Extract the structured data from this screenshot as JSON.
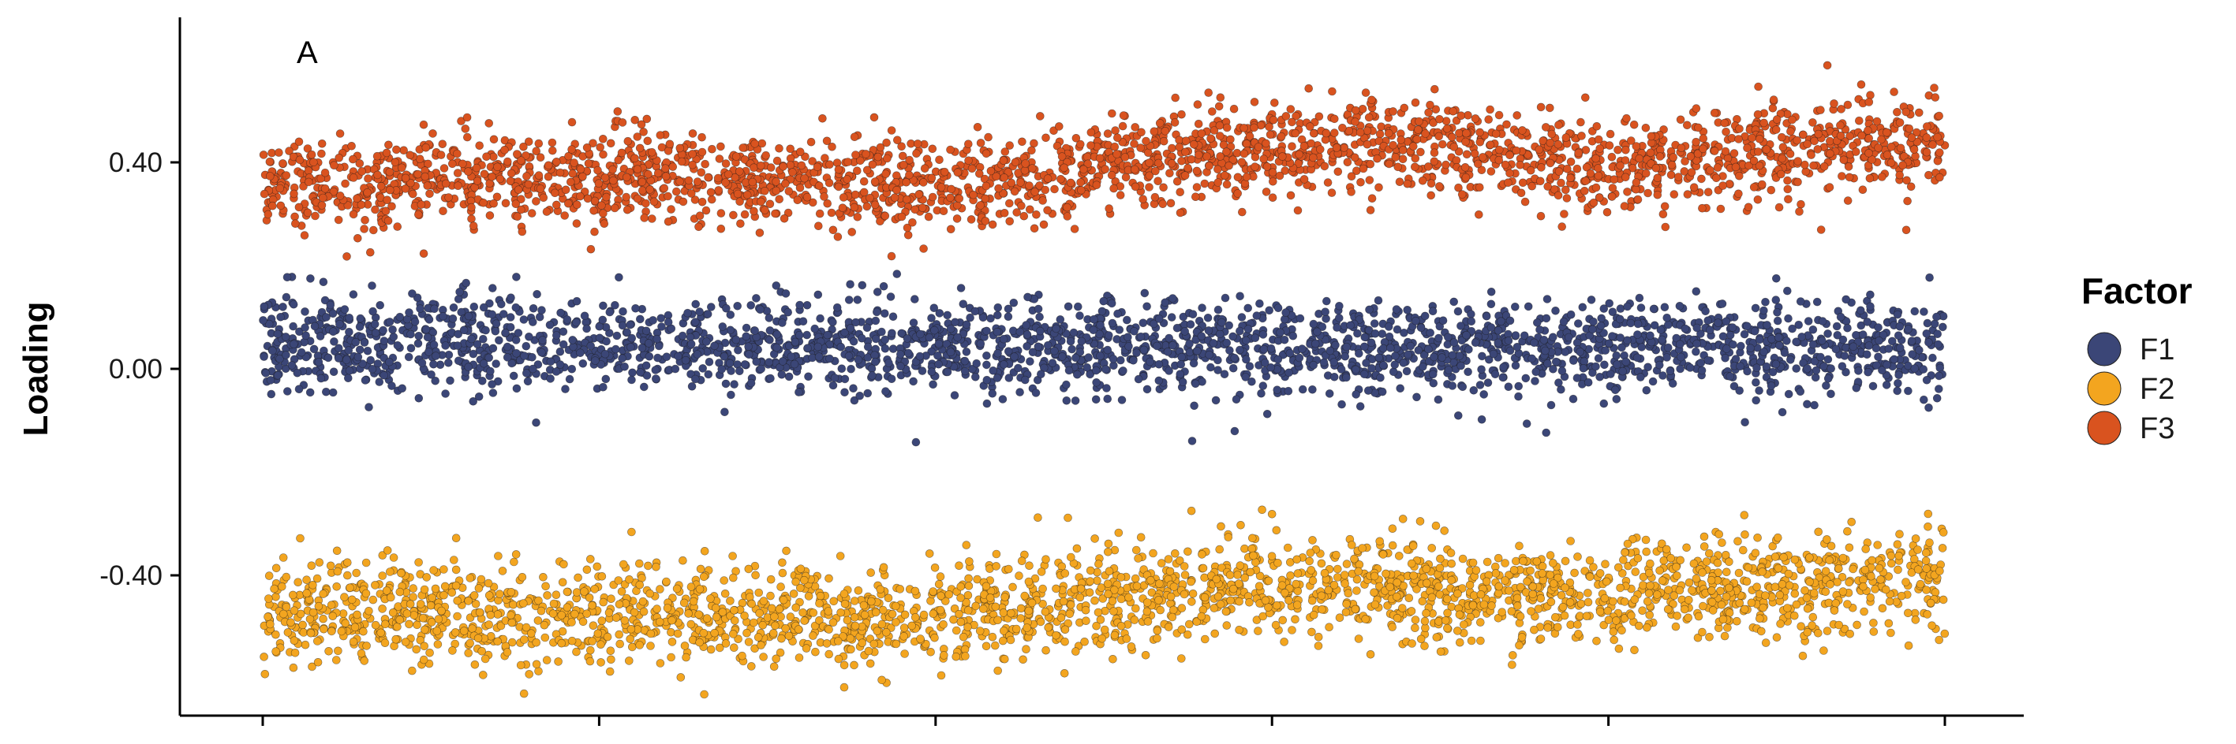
{
  "chart_data": {
    "type": "scatter",
    "panel_label": "A",
    "title": "",
    "xlabel": "",
    "ylabel": "Loading",
    "ylim": [
      -0.62,
      0.62
    ],
    "y_ticks": [
      {
        "value": -0.4,
        "label": "-0.40"
      },
      {
        "value": 0.0,
        "label": "0.00"
      },
      {
        "value": 0.4,
        "label": "0.40"
      }
    ],
    "x_tick_labels": [],
    "x_tick_fractions": [
      0.0,
      0.2,
      0.4,
      0.6,
      0.8,
      1.0
    ],
    "grid": false,
    "legend": {
      "title": "Factor",
      "position": "right"
    },
    "series": [
      {
        "name": "F1",
        "color": "#3b4677",
        "trend_x": [
          0.0,
          0.25,
          0.5,
          0.75,
          1.0
        ],
        "trend_y": [
          0.05,
          0.045,
          0.04,
          0.04,
          0.045
        ],
        "spread": 0.045
      },
      {
        "name": "F2",
        "color": "#f3a51f",
        "trend_x": [
          0.0,
          0.12,
          0.25,
          0.35,
          0.45,
          0.55,
          0.65,
          0.72,
          0.8,
          0.9,
          1.0
        ],
        "trend_y": [
          -0.47,
          -0.475,
          -0.475,
          -0.49,
          -0.46,
          -0.43,
          -0.41,
          -0.45,
          -0.44,
          -0.42,
          -0.4
        ],
        "spread": 0.05
      },
      {
        "name": "F3",
        "color": "#d9531f",
        "trend_x": [
          0.0,
          0.12,
          0.25,
          0.35,
          0.45,
          0.55,
          0.65,
          0.72,
          0.8,
          0.9,
          1.0
        ],
        "trend_y": [
          0.35,
          0.37,
          0.38,
          0.355,
          0.36,
          0.42,
          0.44,
          0.43,
          0.39,
          0.42,
          0.44
        ],
        "spread": 0.045
      }
    ]
  }
}
